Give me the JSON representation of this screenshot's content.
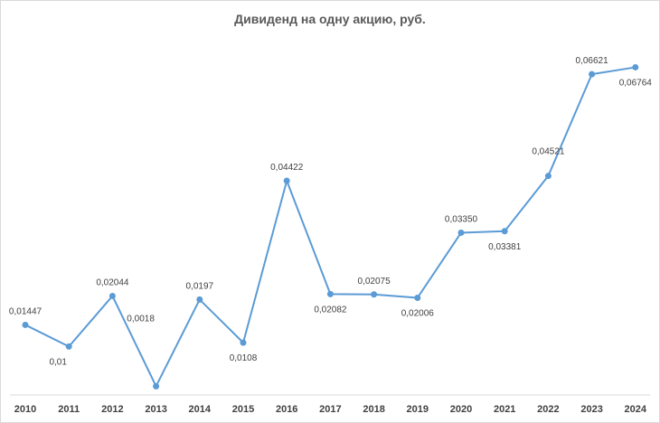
{
  "chart_data": {
    "type": "line",
    "title": "Дивиденд на одну акцию, руб.",
    "xlabel": "",
    "ylabel": "",
    "x": [
      "2010",
      "2011",
      "2012",
      "2013",
      "2014",
      "2015",
      "2016",
      "2017",
      "2018",
      "2019",
      "2020",
      "2021",
      "2022",
      "2023",
      "2024"
    ],
    "series": [
      {
        "values": [
          0.01447,
          0.01,
          0.02044,
          0.0018,
          0.0197,
          0.0108,
          0.04422,
          0.02082,
          0.02075,
          0.02006,
          0.0335,
          0.03381,
          0.04521,
          0.06621,
          0.06764
        ],
        "labels": [
          "0,01447",
          "0,01",
          "0,02044",
          "0,0018",
          "0,0197",
          "0,0108",
          "0,04422",
          "0,02082",
          "0,02075",
          "0,02006",
          "0,03350",
          "0,03381",
          "0,04521",
          "0,06621",
          "0,06764"
        ],
        "color": "#5b9bd5"
      }
    ],
    "ylim": [
      0,
      0.075
    ],
    "grid": false,
    "legend": "none"
  }
}
